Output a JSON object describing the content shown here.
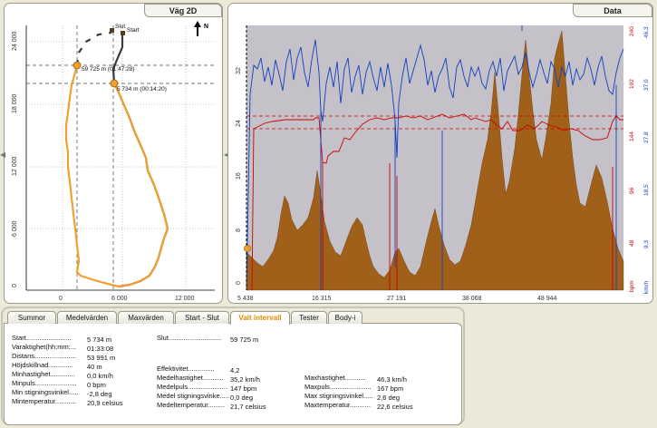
{
  "route_panel": {
    "title": "Väg 2D",
    "north_label": "N",
    "y_ticks": [
      "24 000",
      "18 000",
      "12 000",
      "6 000",
      "0"
    ],
    "x_ticks": [
      "0",
      "6 000",
      "12 000"
    ],
    "marker_top_label": "59 725 m (01:47:28)",
    "marker_bottom_label": "5 734 m (00:14:20)",
    "end_label": "Slut",
    "start_label": "Start"
  },
  "data_panel": {
    "title": "Data",
    "left_axis_ticks": [
      "32",
      "24",
      "16",
      "8",
      "0"
    ],
    "x_ticks": [
      "5 438",
      "16 315",
      "27 191",
      "38 068",
      "48 944"
    ],
    "bpm_ticks": [
      "240",
      "192",
      "144",
      "96",
      "48"
    ],
    "bpm_unit": "bpm",
    "kmh_ticks": [
      "46,3",
      "37,0",
      "27,8",
      "18,5",
      "9,3"
    ],
    "kmh_unit": "km/h"
  },
  "tabs": [
    {
      "label": "Summor",
      "active": false
    },
    {
      "label": "Medelvärden",
      "active": false
    },
    {
      "label": "Maxvärden",
      "active": false
    },
    {
      "label": "Start - Slut",
      "active": false
    },
    {
      "label": "Valt intervall",
      "active": true
    },
    {
      "label": "Tester",
      "active": false
    },
    {
      "label": "Body-i",
      "active": false
    }
  ],
  "stats": {
    "start": {
      "label": "Start........................",
      "value": "5 734 m"
    },
    "duration": {
      "label": "Varaktighet(hh:mm:...",
      "value": "01:33:08"
    },
    "distance": {
      "label": "Distans......................",
      "value": "53 991 m"
    },
    "height_diff": {
      "label": "Höjdskillnad.............",
      "value": "40 m"
    },
    "min_speed": {
      "label": "Minhastighet.............",
      "value": "0,0 km/h"
    },
    "min_pulse": {
      "label": "Minpuls......................",
      "value": "0 bpm"
    },
    "min_climb": {
      "label": "Min stigningsvinkel.....",
      "value": "-2,8 deg"
    },
    "min_temp": {
      "label": "Mintemperatur...........",
      "value": "20,9 celsius"
    },
    "end": {
      "label": "Slut............................",
      "value": "59 725 m"
    },
    "efficiency": {
      "label": "Effektivitet..............",
      "value": "4,2"
    },
    "avg_speed": {
      "label": "Medelhastighet...........",
      "value": "35,2 km/h"
    },
    "avg_pulse": {
      "label": "Medelpuls.....................",
      "value": "147 bpm"
    },
    "avg_climb": {
      "label": "Medel stigningsvinke.....",
      "value": "0,0 deg"
    },
    "avg_temp": {
      "label": "Medeltemperatur.........",
      "value": "21,7 celsius"
    },
    "max_speed": {
      "label": "Maxhastighet...........",
      "value": "46,3 km/h"
    },
    "max_pulse": {
      "label": "Maxpuls......................",
      "value": "167 bpm"
    },
    "max_climb": {
      "label": "Max stigningsvinkel.....",
      "value": "2,6 deg"
    },
    "max_temp": {
      "label": "Maxtemperatur...........",
      "value": "22,6 celsius"
    }
  },
  "colors": {
    "route_selected": "#f0a030",
    "route_other": "#3a3a3a",
    "altitude_fill": "#a0601a",
    "pulse": "#cc0000",
    "speed": "#1040c0",
    "plot_bg": "#c4c2c8",
    "active_tab": "#e08a00"
  }
}
